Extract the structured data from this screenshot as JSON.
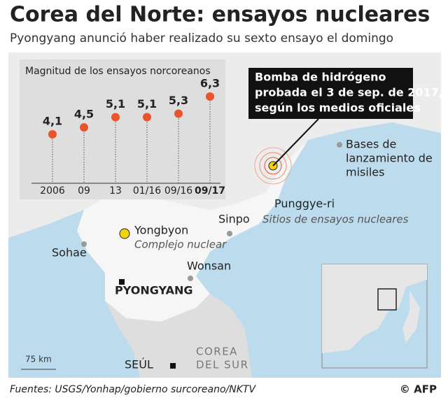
{
  "header": {
    "title": "Corea del Norte: ensayos nucleares",
    "subtitle": "Pyongyang anunció haber realizado su sexto ensayo el domingo"
  },
  "chart_data": {
    "type": "lollipop",
    "title": "Magnitud de los ensayos norcoreanos",
    "categories": [
      "2006",
      "09",
      "13",
      "01/16",
      "09/16",
      "09/17"
    ],
    "values": [
      4.1,
      4.5,
      5.1,
      5.1,
      5.3,
      6.3
    ],
    "value_labels": [
      "4,1",
      "4,5",
      "5,1",
      "5,1",
      "5,3",
      "6,3"
    ],
    "color": "#e8542b"
  },
  "callout": [
    "Bomba de hidrógeno",
    "probada el 3 de sep. de 2017,",
    "según los medios oficiales"
  ],
  "map": {
    "punggye": "Punggye-ri",
    "punggye_note": "Sitios de ensayos nucleares",
    "bases": [
      "Bases de",
      "lanzamiento de",
      "misiles"
    ],
    "yongbyon": "Yongbyon",
    "yongbyon_note": "Complejo nuclear",
    "sohae": "Sohae",
    "sinpo": "Sinpo",
    "wonsan": "Wonsan",
    "pyongyang": "PYONGYANG",
    "seoul": "SEÚL",
    "south": [
      "COREA",
      "DEL SUR"
    ],
    "scale": "75 km"
  },
  "footer": {
    "sources": "Fuentes: USGS/Yonhap/gobierno surcoreano/NKTV",
    "credit": "© AFP"
  }
}
